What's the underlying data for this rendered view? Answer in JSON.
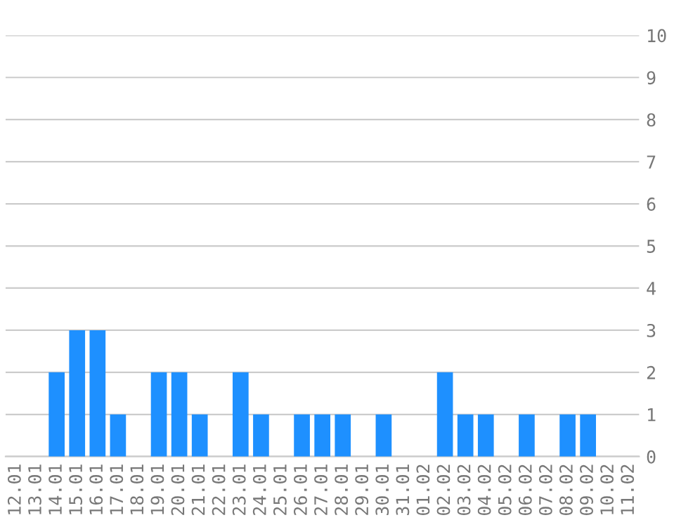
{
  "chart_data": {
    "type": "bar",
    "categories": [
      "12.01",
      "13.01",
      "14.01",
      "15.01",
      "16.01",
      "17.01",
      "18.01",
      "19.01",
      "20.01",
      "21.01",
      "22.01",
      "23.01",
      "24.01",
      "25.01",
      "26.01",
      "27.01",
      "28.01",
      "29.01",
      "30.01",
      "31.01",
      "01.02",
      "02.02",
      "03.02",
      "04.02",
      "05.02",
      "06.02",
      "07.02",
      "08.02",
      "09.02",
      "10.02",
      "11.02"
    ],
    "values": [
      0,
      0,
      2,
      3,
      3,
      1,
      0,
      2,
      2,
      1,
      0,
      2,
      1,
      0,
      1,
      1,
      1,
      0,
      1,
      0,
      0,
      2,
      1,
      1,
      0,
      1,
      0,
      1,
      1,
      0,
      0
    ],
    "color": "#1e90ff",
    "ylim": [
      0,
      10
    ],
    "yticks": [
      0,
      1,
      2,
      3,
      4,
      5,
      6,
      7,
      8,
      9,
      10
    ],
    "grid": "y"
  }
}
